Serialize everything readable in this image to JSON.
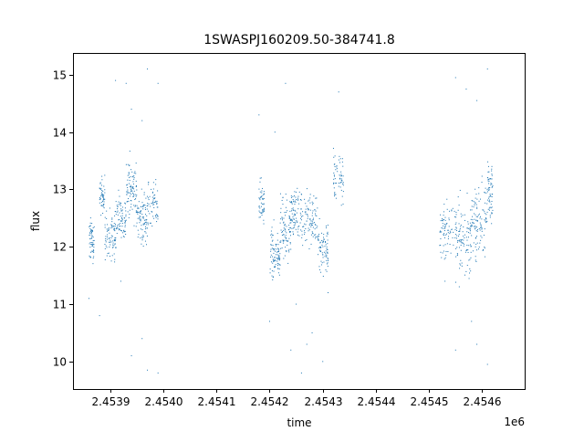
{
  "chart_data": {
    "type": "scatter",
    "title": "1SWASPJ160209.50-384741.8",
    "xlabel": "time",
    "ylabel": "flux",
    "x_offset_label": "1e6",
    "x_multiplier": 1000000,
    "xlim": [
      2.45383,
      2.45468
    ],
    "ylim": [
      9.52,
      15.38
    ],
    "x_ticks": [
      2.4539,
      2.454,
      2.4541,
      2.4542,
      2.4543,
      2.4544,
      2.4545,
      2.4546
    ],
    "x_tick_labels": [
      "2.4539",
      "2.4540",
      "2.4541",
      "2.4542",
      "2.4543",
      "2.4544",
      "2.4545",
      "2.4546"
    ],
    "y_ticks": [
      10,
      11,
      12,
      13,
      14,
      15
    ],
    "y_tick_labels": [
      "10",
      "11",
      "12",
      "13",
      "14",
      "15"
    ],
    "grid": false,
    "marker_color": "#1f77b4",
    "clusters": [
      {
        "x_start": 2.45386,
        "x_end": 2.45387,
        "y_center": 12.1,
        "y_spread": 0.35,
        "n": 60
      },
      {
        "x_start": 2.45388,
        "x_end": 2.45389,
        "y_center": 12.9,
        "y_spread": 0.3,
        "n": 50
      },
      {
        "x_start": 2.45389,
        "x_end": 2.45391,
        "y_center": 12.2,
        "y_spread": 0.4,
        "n": 80
      },
      {
        "x_start": 2.45391,
        "x_end": 2.45393,
        "y_center": 12.5,
        "y_spread": 0.45,
        "n": 80
      },
      {
        "x_start": 2.45393,
        "x_end": 2.45395,
        "y_center": 13.0,
        "y_spread": 0.5,
        "n": 90
      },
      {
        "x_start": 2.45395,
        "x_end": 2.45397,
        "y_center": 12.5,
        "y_spread": 0.45,
        "n": 90
      },
      {
        "x_start": 2.45397,
        "x_end": 2.45399,
        "y_center": 12.7,
        "y_spread": 0.4,
        "n": 60
      },
      {
        "x_start": 2.45418,
        "x_end": 2.45419,
        "y_center": 12.7,
        "y_spread": 0.4,
        "n": 50
      },
      {
        "x_start": 2.4542,
        "x_end": 2.45422,
        "y_center": 11.9,
        "y_spread": 0.45,
        "n": 90
      },
      {
        "x_start": 2.45422,
        "x_end": 2.45424,
        "y_center": 12.3,
        "y_spread": 0.5,
        "n": 90
      },
      {
        "x_start": 2.45424,
        "x_end": 2.45426,
        "y_center": 12.6,
        "y_spread": 0.4,
        "n": 80
      },
      {
        "x_start": 2.45426,
        "x_end": 2.45429,
        "y_center": 12.5,
        "y_spread": 0.45,
        "n": 100
      },
      {
        "x_start": 2.45429,
        "x_end": 2.45431,
        "y_center": 12.0,
        "y_spread": 0.5,
        "n": 80
      },
      {
        "x_start": 2.45432,
        "x_end": 2.45434,
        "y_center": 13.2,
        "y_spread": 0.45,
        "n": 60
      },
      {
        "x_start": 2.45452,
        "x_end": 2.45455,
        "y_center": 12.3,
        "y_spread": 0.5,
        "n": 80
      },
      {
        "x_start": 2.45455,
        "x_end": 2.45458,
        "y_center": 12.1,
        "y_spread": 0.6,
        "n": 110
      },
      {
        "x_start": 2.45458,
        "x_end": 2.45461,
        "y_center": 12.5,
        "y_spread": 0.6,
        "n": 110
      },
      {
        "x_start": 2.45461,
        "x_end": 2.45462,
        "y_center": 13.0,
        "y_spread": 0.5,
        "n": 60
      }
    ],
    "outliers": [
      [
        2.45386,
        11.1
      ],
      [
        2.45388,
        10.8
      ],
      [
        2.45391,
        14.9
      ],
      [
        2.45392,
        11.4
      ],
      [
        2.45393,
        14.85
      ],
      [
        2.45394,
        10.1
      ],
      [
        2.45396,
        14.2
      ],
      [
        2.45396,
        10.4
      ],
      [
        2.45397,
        9.85
      ],
      [
        2.45397,
        15.1
      ],
      [
        2.45399,
        9.8
      ],
      [
        2.45399,
        14.85
      ],
      [
        2.45394,
        14.4
      ],
      [
        2.45418,
        14.3
      ],
      [
        2.4542,
        10.7
      ],
      [
        2.45421,
        14.0
      ],
      [
        2.45423,
        14.85
      ],
      [
        2.45424,
        10.2
      ],
      [
        2.45425,
        11.0
      ],
      [
        2.45426,
        9.8
      ],
      [
        2.45427,
        10.3
      ],
      [
        2.45428,
        10.5
      ],
      [
        2.4543,
        10.0
      ],
      [
        2.45431,
        11.2
      ],
      [
        2.45433,
        14.7
      ],
      [
        2.45453,
        11.4
      ],
      [
        2.45455,
        14.95
      ],
      [
        2.45455,
        10.2
      ],
      [
        2.45457,
        14.75
      ],
      [
        2.45458,
        10.7
      ],
      [
        2.45459,
        14.55
      ],
      [
        2.45461,
        15.1
      ],
      [
        2.45461,
        9.95
      ],
      [
        2.45459,
        10.3
      ]
    ]
  }
}
